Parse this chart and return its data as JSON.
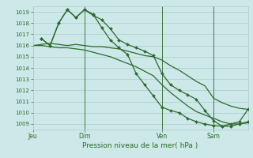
{
  "background_color": "#cce8e8",
  "grid_color": "#aacccc",
  "line_color": "#2d6a2d",
  "marker_color": "#2d6a2d",
  "title": "Pression niveau de la mer( hPa )",
  "xlabel_day_labels": [
    "Jeu",
    "Dim",
    "Ven",
    "Sam"
  ],
  "xlabel_day_positions": [
    0,
    24,
    60,
    84
  ],
  "vline_positions": [
    24,
    60,
    84
  ],
  "ylim": [
    1008.5,
    1019.5
  ],
  "yticks": [
    1009,
    1010,
    1011,
    1012,
    1013,
    1014,
    1015,
    1016,
    1017,
    1018,
    1019
  ],
  "xlim": [
    0,
    100
  ],
  "series": [
    {
      "x": [
        0,
        4,
        8,
        12,
        16,
        20,
        24,
        28,
        32,
        36,
        40,
        44,
        48,
        52,
        56,
        60,
        64,
        68,
        72,
        76,
        80,
        84,
        88,
        92,
        96,
        100
      ],
      "y": [
        1016.0,
        1016.1,
        1016.2,
        1016.1,
        1016.0,
        1016.1,
        1016.0,
        1015.9,
        1015.9,
        1015.8,
        1015.7,
        1015.5,
        1015.3,
        1015.1,
        1015.0,
        1014.7,
        1014.2,
        1013.8,
        1013.3,
        1012.8,
        1012.4,
        1011.3,
        1010.9,
        1010.6,
        1010.4,
        1010.3
      ],
      "markers": false,
      "lw": 0.9
    },
    {
      "x": [
        0,
        4,
        8,
        12,
        16,
        20,
        24,
        28,
        32,
        36,
        40,
        44,
        48,
        52,
        56,
        60,
        64,
        68,
        72,
        76,
        80,
        84,
        88,
        92,
        96,
        100
      ],
      "y": [
        1016.0,
        1016.0,
        1015.9,
        1015.8,
        1015.8,
        1015.7,
        1015.6,
        1015.4,
        1015.2,
        1015.0,
        1014.7,
        1014.4,
        1014.1,
        1013.7,
        1013.3,
        1012.5,
        1011.8,
        1011.2,
        1010.6,
        1010.1,
        1009.8,
        1009.5,
        1009.2,
        1009.0,
        1009.0,
        1009.1
      ],
      "markers": false,
      "lw": 0.9
    },
    {
      "x": [
        4,
        8,
        12,
        16,
        20,
        24,
        28,
        32,
        36,
        40,
        44,
        48,
        52,
        56,
        60,
        64,
        68,
        72,
        76,
        80,
        84,
        88,
        92,
        96,
        100
      ],
      "y": [
        1016.6,
        1016.0,
        1018.0,
        1019.2,
        1018.5,
        1019.2,
        1018.7,
        1018.3,
        1017.5,
        1016.5,
        1016.1,
        1015.8,
        1015.5,
        1015.1,
        1013.5,
        1012.5,
        1012.0,
        1011.6,
        1011.2,
        1010.2,
        1009.3,
        1008.8,
        1008.8,
        1009.0,
        1009.2
      ],
      "markers": true,
      "lw": 0.9
    },
    {
      "x": [
        4,
        8,
        12,
        16,
        20,
        24,
        28,
        32,
        36,
        40,
        44,
        48,
        52,
        56,
        60,
        64,
        68,
        72,
        76,
        80,
        84,
        88,
        92,
        96,
        100
      ],
      "y": [
        1016.6,
        1016.0,
        1018.0,
        1019.2,
        1018.5,
        1019.2,
        1018.8,
        1017.6,
        1016.5,
        1015.8,
        1015.2,
        1013.5,
        1012.5,
        1011.5,
        1010.5,
        1010.2,
        1010.0,
        1009.5,
        1009.2,
        1009.0,
        1008.85,
        1008.8,
        1009.0,
        1009.2,
        1010.3
      ],
      "markers": true,
      "lw": 0.9
    }
  ]
}
